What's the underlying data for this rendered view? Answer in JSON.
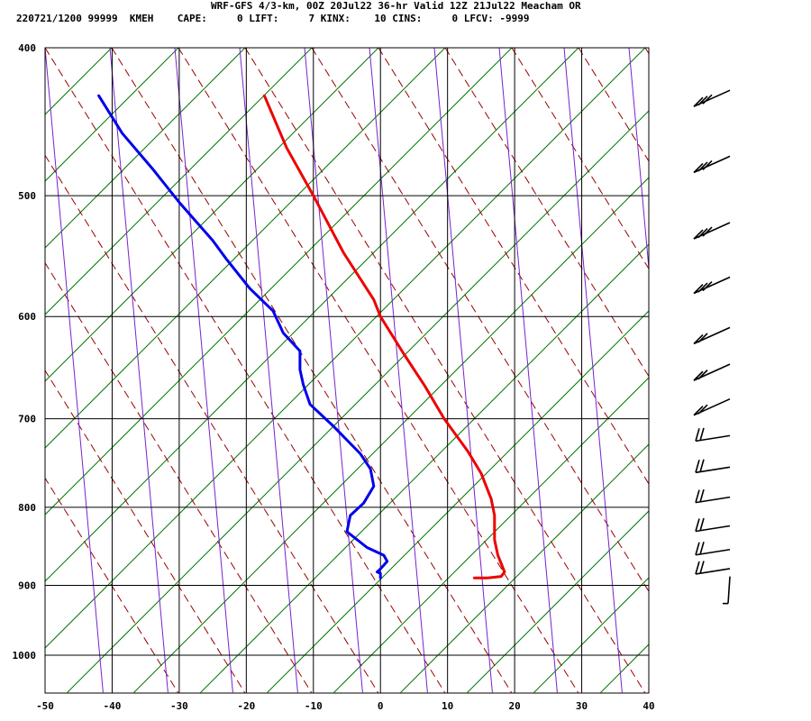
{
  "header": {
    "line1": "WRF-GFS 4/3-km, 00Z 20Jul22 36-hr Valid 12Z 21Jul22 Meacham OR",
    "line2": "220721/1200 99999  KMEH    CAPE:     0 LIFT:     7 KINX:    10 CINS:     0 LFCV: -9999"
  },
  "chart_data": {
    "type": "line",
    "title": "WRF-GFS 4/3-km, 00Z 20Jul22 36-hr Valid 12Z 21Jul22 Meacham OR",
    "xlim": [
      -50,
      40
    ],
    "pressure_range": [
      400,
      1050
    ],
    "x_ticks": [
      -50,
      -40,
      -30,
      -20,
      -10,
      0,
      10,
      20,
      30,
      40
    ],
    "x_tick_labels": [
      "-50",
      "-40",
      "-30",
      "-20",
      "-10",
      "0",
      "10",
      "20",
      "30",
      "40"
    ],
    "y_ticks": [
      400,
      500,
      600,
      700,
      800,
      900,
      1000
    ],
    "y_tick_labels": [
      "400",
      "500",
      "600",
      "700",
      "800",
      "900",
      "1000"
    ],
    "grid": true,
    "colors": {
      "temperature": "#ee0000",
      "dewpoint": "#0000ee",
      "dry_adiabats": "#990000",
      "moist_adiabats": "#7722cc",
      "isotherms_skew": "#007700",
      "grid": "#000000"
    },
    "series": [
      {
        "key": "temperature",
        "points": [
          [
            -17.3,
            430
          ],
          [
            -14,
            465
          ],
          [
            -10,
            500
          ],
          [
            -5.5,
            545
          ],
          [
            -1,
            585
          ],
          [
            0,
            600
          ],
          [
            3.5,
            635
          ],
          [
            6.5,
            665
          ],
          [
            9.5,
            700
          ],
          [
            13,
            735
          ],
          [
            15,
            760
          ],
          [
            16.5,
            790
          ],
          [
            17,
            810
          ],
          [
            17,
            840
          ],
          [
            17.5,
            860
          ],
          [
            18.5,
            882
          ],
          [
            18,
            888
          ],
          [
            16,
            890
          ],
          [
            14,
            890
          ]
        ]
      },
      {
        "key": "dewpoint",
        "points": [
          [
            -42,
            430
          ],
          [
            -38.5,
            455
          ],
          [
            -34,
            480
          ],
          [
            -30,
            505
          ],
          [
            -25,
            535
          ],
          [
            -23,
            550
          ],
          [
            -19.5,
            575
          ],
          [
            -16,
            595
          ],
          [
            -14.5,
            615
          ],
          [
            -12,
            632
          ],
          [
            -12,
            650
          ],
          [
            -11.5,
            665
          ],
          [
            -10.5,
            685
          ],
          [
            -7,
            708
          ],
          [
            -3,
            738
          ],
          [
            -1.5,
            755
          ],
          [
            -1,
            775
          ],
          [
            -2.5,
            795
          ],
          [
            -4.5,
            810
          ],
          [
            -5,
            830
          ],
          [
            -2,
            850
          ],
          [
            0.5,
            860
          ],
          [
            1,
            868
          ],
          [
            0,
            878
          ],
          [
            -0.5,
            882
          ],
          [
            0,
            884
          ],
          [
            0,
            890
          ]
        ]
      }
    ],
    "wind_barbs_pressure": [
      430,
      475,
      525,
      570,
      615,
      650,
      685,
      720,
      755,
      790,
      825,
      855,
      880,
      910
    ]
  }
}
